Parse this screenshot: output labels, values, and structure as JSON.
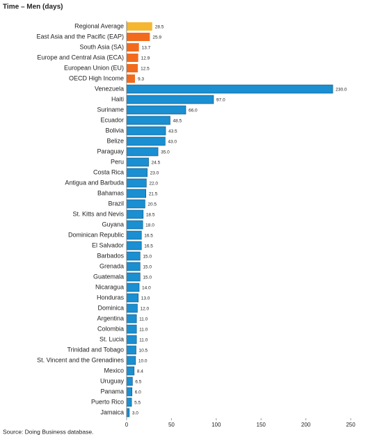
{
  "chart_data": {
    "type": "hbar",
    "title": "Time – Men (days)",
    "source": "Source: Doing Business database.",
    "categories": [
      "Regional Average",
      "East Asia and the Pacific (EAP)",
      "South Asia (SA)",
      "Europe and Central Asia (ECA)",
      "European Union (EU)",
      "OECD High Income",
      "Venezuela",
      "Haiti",
      "Suriname",
      "Ecuador",
      "Bolivia",
      "Belize",
      "Paraguay",
      "Peru",
      "Costa Rica",
      "Antigua and Barbuda",
      "Bahamas",
      "Brazil",
      "St. Kitts and Nevis",
      "Guyana",
      "Dominican Republic",
      "El Salvador",
      "Barbados",
      "Grenada",
      "Guatemala",
      "Nicaragua",
      "Honduras",
      "Dominica",
      "Argentina",
      "Colombia",
      "St. Lucia",
      "Trinidad and Tobago",
      "St. Vincent and the Grenadines",
      "Mexico",
      "Uruguay",
      "Panama",
      "Puerto Rico",
      "Jamaica"
    ],
    "values": [
      28.5,
      25.9,
      13.7,
      12.9,
      12.5,
      9.3,
      230.0,
      97.0,
      66.0,
      48.5,
      43.5,
      43.0,
      35.0,
      24.5,
      23.0,
      22.0,
      21.5,
      20.5,
      18.5,
      18.0,
      16.5,
      16.5,
      15.0,
      15.0,
      15.0,
      14.0,
      13.0,
      12.0,
      11.0,
      11.0,
      11.0,
      10.5,
      10.0,
      8.4,
      6.5,
      6.0,
      5.5,
      3.0
    ],
    "value_labels": [
      "28.5",
      "25.9",
      "13.7",
      "12.9",
      "12.5",
      "9.3",
      "230.0",
      "97.0",
      "66.0",
      "48.5",
      "43.5",
      "43.0",
      "35.0",
      "24.5",
      "23.0",
      "22.0",
      "21.5",
      "20.5",
      "18.5",
      "18.0",
      "16.5",
      "16.5",
      "15.0",
      "15.0",
      "15.0",
      "14.0",
      "13.0",
      "12.0",
      "11.0",
      "11.0",
      "11.0",
      "10.5",
      "10.0",
      "8.4",
      "6.5",
      "6.0",
      "5.5",
      "3.0"
    ],
    "colors": [
      "#f5b731",
      "#f26b1d",
      "#f26b1d",
      "#f26b1d",
      "#f26b1d",
      "#f26b1d",
      "#1a8fd1",
      "#1a8fd1",
      "#1a8fd1",
      "#1a8fd1",
      "#1a8fd1",
      "#1a8fd1",
      "#1a8fd1",
      "#1a8fd1",
      "#1a8fd1",
      "#1a8fd1",
      "#1a8fd1",
      "#1a8fd1",
      "#1a8fd1",
      "#1a8fd1",
      "#1a8fd1",
      "#1a8fd1",
      "#1a8fd1",
      "#1a8fd1",
      "#1a8fd1",
      "#1a8fd1",
      "#1a8fd1",
      "#1a8fd1",
      "#1a8fd1",
      "#1a8fd1",
      "#1a8fd1",
      "#1a8fd1",
      "#1a8fd1",
      "#1a8fd1",
      "#1a8fd1",
      "#1a8fd1",
      "#1a8fd1",
      "#1a8fd1"
    ],
    "xlim": [
      0,
      250
    ],
    "xticks": [
      0,
      50,
      100,
      150,
      200,
      250
    ]
  }
}
